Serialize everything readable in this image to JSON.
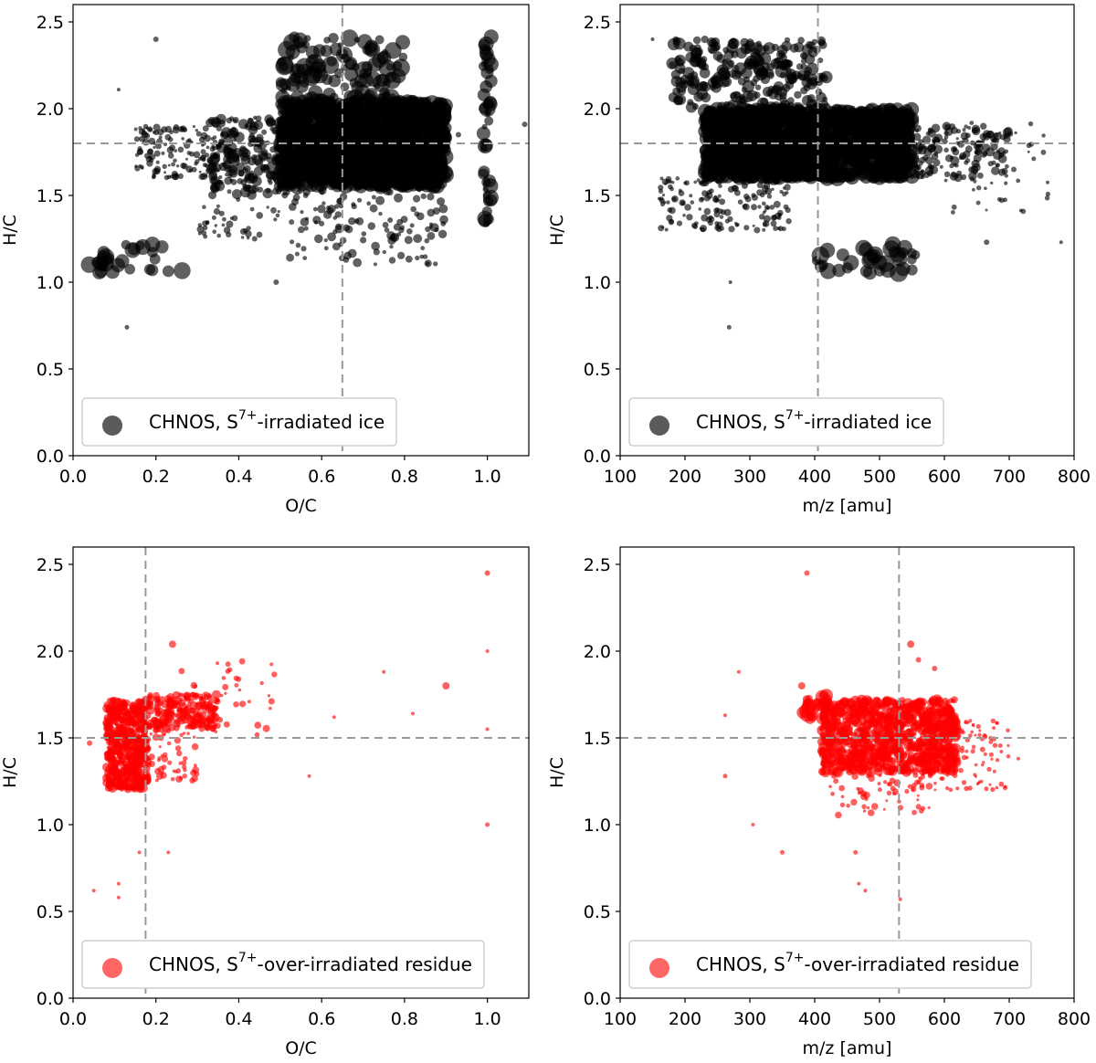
{
  "chart_data": [
    {
      "id": "p1",
      "type": "scatter",
      "xlabel": "O/C",
      "ylabel": "H/C",
      "xlim": [
        0.0,
        1.1
      ],
      "ylim": [
        0.0,
        2.6
      ],
      "xticks": [
        "0.0",
        "0.2",
        "0.4",
        "0.6",
        "0.8",
        "1.0"
      ],
      "yticks": [
        "0.0",
        "0.5",
        "1.0",
        "1.5",
        "2.0",
        "2.5"
      ],
      "ref_x": 0.65,
      "ref_y": 1.8,
      "color": "#000000",
      "opacity": 0.62,
      "legend": {
        "prefix": "CHNOS, S",
        "sup": "7+",
        "suffix": "-irradiated ice",
        "marker_color": "#5a5a5a"
      },
      "clusters": [
        {
          "x": [
            0.5,
            0.9
          ],
          "y": [
            1.55,
            2.05
          ],
          "n": 1600,
          "s": [
            3,
            9
          ]
        },
        {
          "x": [
            0.5,
            0.8
          ],
          "y": [
            2.05,
            2.42
          ],
          "n": 110,
          "s": [
            3,
            10
          ]
        },
        {
          "x": [
            0.33,
            0.5
          ],
          "y": [
            1.5,
            1.95
          ],
          "n": 200,
          "s": [
            2,
            6
          ]
        },
        {
          "x": [
            0.15,
            0.33
          ],
          "y": [
            1.6,
            1.9
          ],
          "n": 120,
          "s": [
            1.5,
            4
          ]
        },
        {
          "x": [
            0.5,
            0.9
          ],
          "y": [
            1.1,
            1.55
          ],
          "n": 130,
          "s": [
            2,
            5
          ]
        },
        {
          "x": [
            0.3,
            0.5
          ],
          "y": [
            1.25,
            1.5
          ],
          "n": 40,
          "s": [
            1.5,
            4
          ]
        },
        {
          "x": [
            0.99,
            1.01
          ],
          "y": [
            1.3,
            2.45
          ],
          "n": 45,
          "s": [
            3,
            9
          ]
        },
        {
          "x": [
            0.02,
            0.27
          ],
          "y": [
            1.05,
            1.22
          ],
          "n": 30,
          "s": [
            5,
            10
          ]
        }
      ],
      "points": [
        [
          0.13,
          0.74,
          2.5
        ],
        [
          0.2,
          2.4,
          3
        ],
        [
          0.11,
          2.11,
          2
        ],
        [
          1.09,
          1.91,
          3
        ],
        [
          1.0,
          2.0,
          9
        ],
        [
          0.93,
          1.85,
          3
        ],
        [
          0.49,
          1.0,
          3
        ],
        [
          0.52,
          2.12,
          3
        ]
      ]
    },
    {
      "id": "p2",
      "type": "scatter",
      "xlabel": "m/z [amu]",
      "ylabel": "H/C",
      "xlim": [
        100,
        800
      ],
      "ylim": [
        0.0,
        2.6
      ],
      "xticks": [
        "100",
        "200",
        "300",
        "400",
        "500",
        "600",
        "700",
        "800"
      ],
      "yticks": [
        "0.0",
        "0.5",
        "1.0",
        "1.5",
        "2.0",
        "2.5"
      ],
      "ref_x": 405,
      "ref_y": 1.8,
      "color": "#000000",
      "opacity": 0.62,
      "legend": {
        "prefix": "CHNOS, S",
        "sup": "7+",
        "suffix": "-irradiated ice",
        "marker_color": "#5a5a5a"
      },
      "clusters": [
        {
          "x": [
            230,
            550
          ],
          "y": [
            1.6,
            2.0
          ],
          "n": 1500,
          "s": [
            3,
            9
          ]
        },
        {
          "x": [
            180,
            420
          ],
          "y": [
            2.0,
            2.4
          ],
          "n": 260,
          "s": [
            3,
            7
          ]
        },
        {
          "x": [
            430,
            700
          ],
          "y": [
            1.6,
            1.9
          ],
          "n": 250,
          "s": [
            2,
            5
          ]
        },
        {
          "x": [
            160,
            360
          ],
          "y": [
            1.3,
            1.6
          ],
          "n": 160,
          "s": [
            1.5,
            4
          ]
        },
        {
          "x": [
            400,
            560
          ],
          "y": [
            1.05,
            1.22
          ],
          "n": 35,
          "s": [
            5,
            10
          ]
        },
        {
          "x": [
            600,
            760
          ],
          "y": [
            1.4,
            1.95
          ],
          "n": 40,
          "s": [
            1.5,
            3
          ]
        }
      ],
      "points": [
        [
          268,
          0.74,
          2.5
        ],
        [
          270,
          1.0,
          2
        ],
        [
          150,
          2.4,
          2
        ],
        [
          780,
          1.23,
          2
        ],
        [
          665,
          1.23,
          3
        ]
      ]
    },
    {
      "id": "p3",
      "type": "scatter",
      "xlabel": "O/C",
      "ylabel": "H/C",
      "xlim": [
        0.0,
        1.1
      ],
      "ylim": [
        0.0,
        2.6
      ],
      "xticks": [
        "0.0",
        "0.2",
        "0.4",
        "0.6",
        "0.8",
        "1.0"
      ],
      "yticks": [
        "0.0",
        "0.5",
        "1.0",
        "1.5",
        "2.0",
        "2.5"
      ],
      "ref_x": 0.175,
      "ref_y": 1.5,
      "color": "#ff0000",
      "opacity": 0.62,
      "legend": {
        "prefix": "CHNOS, S",
        "sup": "7+",
        "suffix": "-over-irradiated residue",
        "marker_color": "#ff6666"
      },
      "clusters": [
        {
          "x": [
            0.08,
            0.18
          ],
          "y": [
            1.2,
            1.72
          ],
          "n": 600,
          "s": [
            2,
            5
          ]
        },
        {
          "x": [
            0.18,
            0.35
          ],
          "y": [
            1.55,
            1.75
          ],
          "n": 200,
          "s": [
            2,
            5
          ]
        },
        {
          "x": [
            0.15,
            0.3
          ],
          "y": [
            1.25,
            1.55
          ],
          "n": 70,
          "s": [
            1.5,
            4
          ]
        },
        {
          "x": [
            0.25,
            0.5
          ],
          "y": [
            1.5,
            1.95
          ],
          "n": 40,
          "s": [
            1.5,
            4
          ]
        }
      ],
      "points": [
        [
          1.0,
          2.45,
          3
        ],
        [
          1.0,
          2.0,
          2
        ],
        [
          1.0,
          1.0,
          2.5
        ],
        [
          1.0,
          1.55,
          2
        ],
        [
          0.9,
          1.8,
          4
        ],
        [
          0.82,
          1.64,
          2
        ],
        [
          0.75,
          1.88,
          2
        ],
        [
          0.63,
          1.62,
          2
        ],
        [
          0.57,
          1.28,
          2
        ],
        [
          0.24,
          2.04,
          4
        ],
        [
          0.05,
          0.62,
          2
        ],
        [
          0.11,
          0.58,
          2
        ],
        [
          0.16,
          0.84,
          2
        ],
        [
          0.23,
          0.84,
          2
        ],
        [
          0.11,
          0.66,
          2
        ],
        [
          0.04,
          1.47,
          3
        ]
      ]
    },
    {
      "id": "p4",
      "type": "scatter",
      "xlabel": "m/z [amu]",
      "ylabel": "H/C",
      "xlim": [
        100,
        800
      ],
      "ylim": [
        0.0,
        2.6
      ],
      "xticks": [
        "100",
        "200",
        "300",
        "400",
        "500",
        "600",
        "700",
        "800"
      ],
      "yticks": [
        "0.0",
        "0.5",
        "1.0",
        "1.5",
        "2.0",
        "2.5"
      ],
      "ref_x": 530,
      "ref_y": 1.5,
      "color": "#ff0000",
      "opacity": 0.62,
      "legend": {
        "prefix": "CHNOS, S",
        "sup": "7+",
        "suffix": "-over-irradiated residue",
        "marker_color": "#ff6666"
      },
      "clusters": [
        {
          "x": [
            410,
            620
          ],
          "y": [
            1.3,
            1.72
          ],
          "n": 1000,
          "s": [
            2,
            6
          ]
        },
        {
          "x": [
            380,
            420
          ],
          "y": [
            1.6,
            1.75
          ],
          "n": 25,
          "s": [
            4,
            8
          ]
        },
        {
          "x": [
            560,
            700
          ],
          "y": [
            1.2,
            1.6
          ],
          "n": 120,
          "s": [
            1.5,
            3
          ]
        },
        {
          "x": [
            420,
            580
          ],
          "y": [
            1.05,
            1.3
          ],
          "n": 60,
          "s": [
            1.5,
            4
          ]
        }
      ],
      "points": [
        [
          388,
          2.45,
          3
        ],
        [
          283,
          1.88,
          2
        ],
        [
          262,
          1.63,
          2
        ],
        [
          262,
          1.28,
          2.5
        ],
        [
          305,
          1.0,
          2
        ],
        [
          350,
          0.84,
          2.5
        ],
        [
          380,
          1.8,
          4
        ],
        [
          468,
          0.66,
          2
        ],
        [
          478,
          0.62,
          2
        ],
        [
          532,
          0.57,
          2
        ],
        [
          463,
          0.84,
          2.5
        ],
        [
          548,
          2.04,
          4
        ],
        [
          560,
          1.95,
          3
        ],
        [
          585,
          1.9,
          3
        ],
        [
          714,
          1.38,
          2
        ]
      ]
    }
  ]
}
